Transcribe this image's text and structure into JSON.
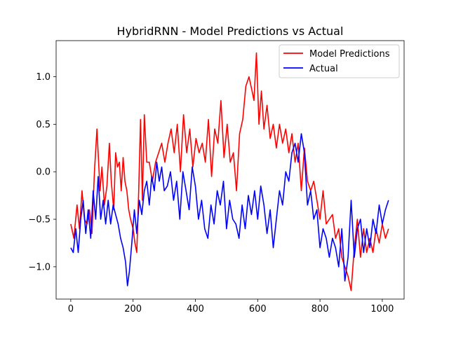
{
  "chart_data": {
    "type": "line",
    "title": "HybridRNN - Model Predictions vs Actual",
    "xlabel": "",
    "ylabel": "",
    "xlim": [
      -47,
      1070
    ],
    "ylim": [
      -1.34,
      1.38
    ],
    "xticks": [
      0,
      200,
      400,
      600,
      800,
      1000
    ],
    "yticks": [
      -1.0,
      -0.5,
      0.0,
      0.5,
      1.0
    ],
    "xtick_labels": [
      "0",
      "200",
      "400",
      "600",
      "800",
      "1000"
    ],
    "ytick_labels": [
      "−1.0",
      "−0.5",
      "0.0",
      "0.5",
      "1.0"
    ],
    "grid": false,
    "legend_position": "top-right",
    "series": [
      {
        "name": "Model Predictions",
        "color": "#ff0000",
        "x": [
          0,
          10,
          20,
          28,
          36,
          44,
          52,
          60,
          68,
          76,
          84,
          88,
          94,
          100,
          108,
          116,
          124,
          130,
          138,
          144,
          150,
          156,
          162,
          168,
          174,
          180,
          186,
          192,
          200,
          206,
          212,
          218,
          224,
          230,
          236,
          244,
          252,
          262,
          272,
          282,
          292,
          302,
          312,
          322,
          332,
          342,
          352,
          362,
          372,
          382,
          392,
          402,
          412,
          422,
          432,
          442,
          452,
          462,
          472,
          482,
          492,
          502,
          512,
          522,
          532,
          542,
          552,
          562,
          572,
          582,
          588,
          596,
          604,
          612,
          620,
          630,
          640,
          650,
          660,
          670,
          680,
          690,
          700,
          710,
          720,
          730,
          740,
          750,
          760,
          770,
          780,
          790,
          800,
          810,
          820,
          830,
          840,
          850,
          860,
          870,
          880,
          890,
          900,
          910,
          920,
          930,
          940,
          950,
          960,
          970,
          980,
          990,
          1000,
          1010,
          1020
        ],
        "y": [
          -0.55,
          -0.7,
          -0.35,
          -0.6,
          -0.2,
          -0.5,
          -0.55,
          -0.4,
          -0.65,
          0.0,
          0.45,
          0.2,
          -0.2,
          0.05,
          -0.35,
          -0.15,
          0.3,
          -0.1,
          -0.4,
          0.2,
          0.05,
          0.1,
          -0.2,
          0.15,
          -0.1,
          -0.2,
          -0.4,
          -0.5,
          -0.6,
          -0.75,
          -0.85,
          -0.2,
          0.55,
          -0.3,
          0.6,
          0.1,
          0.1,
          -0.1,
          0.1,
          0.2,
          0.3,
          0.1,
          0.3,
          0.45,
          0.2,
          0.5,
          0.0,
          0.6,
          0.2,
          0.45,
          0.05,
          0.35,
          0.2,
          0.3,
          0.1,
          0.55,
          -0.05,
          0.45,
          0.3,
          0.75,
          0.15,
          0.5,
          0.1,
          0.2,
          -0.2,
          0.4,
          0.55,
          0.9,
          1.0,
          0.85,
          0.75,
          1.25,
          0.5,
          0.85,
          0.45,
          0.7,
          0.35,
          0.5,
          0.25,
          0.5,
          0.3,
          0.45,
          0.2,
          0.4,
          0.1,
          0.3,
          -0.2,
          0.25,
          -0.1,
          -0.2,
          -0.1,
          -0.3,
          -0.5,
          -0.2,
          -0.55,
          -0.5,
          -0.45,
          -0.7,
          -0.6,
          -0.9,
          -1.0,
          -1.1,
          -1.25,
          -0.8,
          -0.5,
          -0.9,
          -0.6,
          -0.85,
          -0.7,
          -0.85,
          -0.6,
          -0.75,
          -0.55,
          -0.7,
          -0.6
        ]
      },
      {
        "name": "Actual",
        "color": "#0000ff",
        "x": [
          0,
          8,
          16,
          24,
          32,
          40,
          48,
          56,
          64,
          72,
          80,
          88,
          96,
          104,
          112,
          120,
          128,
          136,
          144,
          152,
          160,
          168,
          176,
          182,
          188,
          196,
          204,
          212,
          220,
          228,
          236,
          244,
          252,
          260,
          268,
          276,
          284,
          292,
          300,
          310,
          320,
          330,
          340,
          350,
          360,
          370,
          380,
          390,
          400,
          410,
          420,
          430,
          440,
          450,
          460,
          470,
          480,
          490,
          500,
          510,
          520,
          530,
          540,
          550,
          560,
          570,
          580,
          590,
          600,
          610,
          620,
          630,
          640,
          650,
          660,
          670,
          680,
          690,
          700,
          710,
          720,
          730,
          740,
          750,
          760,
          770,
          780,
          790,
          800,
          810,
          820,
          830,
          840,
          850,
          860,
          870,
          880,
          890,
          900,
          910,
          920,
          930,
          940,
          950,
          960,
          970,
          980,
          990,
          1000,
          1010,
          1020
        ],
        "y": [
          -0.8,
          -0.85,
          -0.6,
          -0.85,
          -0.5,
          -0.3,
          -0.65,
          -0.4,
          -0.7,
          -0.2,
          -0.5,
          -0.05,
          -0.5,
          -0.3,
          -0.55,
          -0.3,
          -0.55,
          -0.35,
          -0.45,
          -0.55,
          -0.7,
          -0.8,
          -0.95,
          -1.2,
          -1.05,
          -0.75,
          -0.4,
          -0.65,
          -0.3,
          -0.45,
          -0.2,
          -0.1,
          -0.35,
          -0.05,
          -0.2,
          0.1,
          -0.1,
          0.05,
          -0.2,
          -0.15,
          0.0,
          -0.3,
          -0.1,
          -0.5,
          0.0,
          -0.2,
          -0.4,
          0.05,
          -0.15,
          -0.5,
          -0.3,
          -0.6,
          -0.7,
          -0.35,
          -0.55,
          -0.2,
          -0.35,
          -0.1,
          -0.6,
          -0.3,
          -0.5,
          -0.55,
          -0.7,
          -0.35,
          -0.6,
          -0.25,
          -0.45,
          -0.2,
          -0.5,
          -0.15,
          -0.35,
          -0.65,
          -0.4,
          -0.8,
          -0.5,
          -0.2,
          -0.35,
          0.0,
          -0.1,
          0.2,
          0.3,
          0.1,
          0.4,
          0.2,
          -0.35,
          -0.2,
          -0.5,
          -0.4,
          -0.8,
          -0.6,
          -0.7,
          -0.9,
          -0.7,
          -0.8,
          -1.0,
          -0.6,
          -1.15,
          -0.9,
          -0.3,
          -0.9,
          -0.6,
          -0.5,
          -0.85,
          -0.6,
          -0.8,
          -0.5,
          -0.65,
          -0.35,
          -0.55,
          -0.4,
          -0.3
        ]
      }
    ]
  }
}
